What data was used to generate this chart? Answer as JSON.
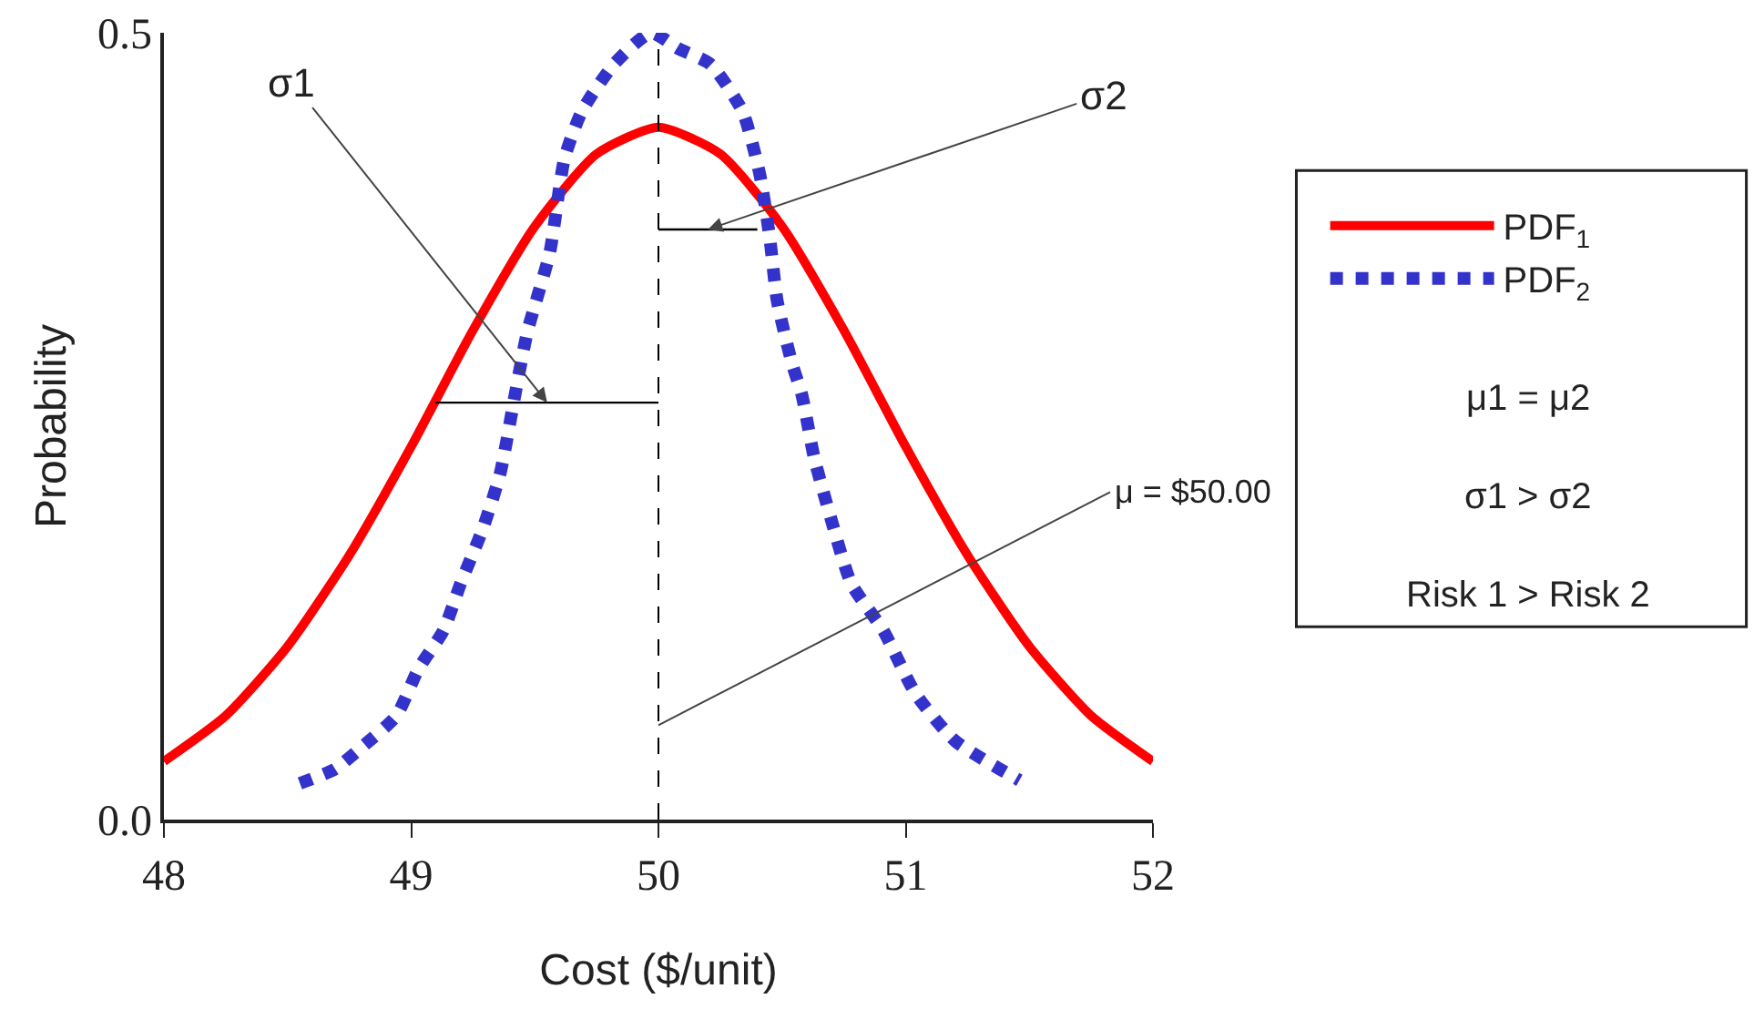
{
  "chart_data": {
    "type": "line",
    "xlabel": "Cost ($/unit)",
    "ylabel": "Probability",
    "xlim": [
      48,
      52
    ],
    "xticks": [
      48,
      49,
      50,
      51,
      52
    ],
    "ylim": [
      0,
      0.5
    ],
    "yticks": [
      {
        "value": 0,
        "label": "0.0"
      },
      0.5
    ],
    "grid": false,
    "legend": "right",
    "marker": "none",
    "series": [
      {
        "name": "PDF$_{1}$",
        "color": "#ff0000",
        "line_style": "solid",
        "x": [
          48,
          48.25,
          48.5,
          48.75,
          49,
          49.25,
          49.5,
          49.75,
          50,
          50.25,
          50.5,
          50.75,
          51,
          51.25,
          51.5,
          51.75,
          52
        ],
        "values": [
          0.037,
          0.066,
          0.11,
          0.168,
          0.237,
          0.311,
          0.377,
          0.423,
          0.44,
          0.423,
          0.377,
          0.311,
          0.237,
          0.168,
          0.11,
          0.066,
          0.037
        ]
      },
      {
        "name": "PDF$_{2}$",
        "color": "#3333cc",
        "line_style": "dotted",
        "x": [
          48.55,
          48.69,
          48.8,
          48.94,
          49.03,
          49.13,
          49.2,
          49.29,
          49.36,
          49.42,
          49.47,
          49.56,
          49.62,
          49.69,
          49.82,
          49.97,
          50.08,
          50.21,
          50.34,
          50.41,
          50.45,
          50.48,
          50.54,
          50.58,
          50.63,
          50.7,
          50.78,
          50.91,
          51.04,
          51.2,
          51.46
        ],
        "values": [
          0.023,
          0.032,
          0.046,
          0.066,
          0.096,
          0.12,
          0.15,
          0.185,
          0.22,
          0.27,
          0.31,
          0.36,
          0.42,
          0.45,
          0.48,
          0.5,
          0.49,
          0.48,
          0.45,
          0.41,
          0.37,
          0.33,
          0.29,
          0.27,
          0.23,
          0.19,
          0.15,
          0.12,
          0.08,
          0.05,
          0.025
        ]
      },
      {
        "color": "#000000",
        "line_style": "solid",
        "x": [
          49.1,
          50
        ],
        "values": [
          0.265,
          0.265
        ]
      },
      {
        "color": "#000000",
        "line_style": "solid",
        "x": [
          50,
          50.4
        ],
        "values": [
          0.375,
          0.375
        ]
      }
    ],
    "ref_lines": [
      {
        "axis": "x",
        "value": 50,
        "label": "μ = $50.00",
        "line_style": "dashed",
        "color": "#000000"
      }
    ],
    "annotations": [
      {
        "text": "σ1",
        "x": 49.55,
        "y": 0.265
      },
      {
        "text": "σ2",
        "x": 50.2,
        "y": 0.375
      },
      "μ1 = μ2",
      "σ1 > σ2",
      "Risk 1 > Risk 2"
    ]
  }
}
